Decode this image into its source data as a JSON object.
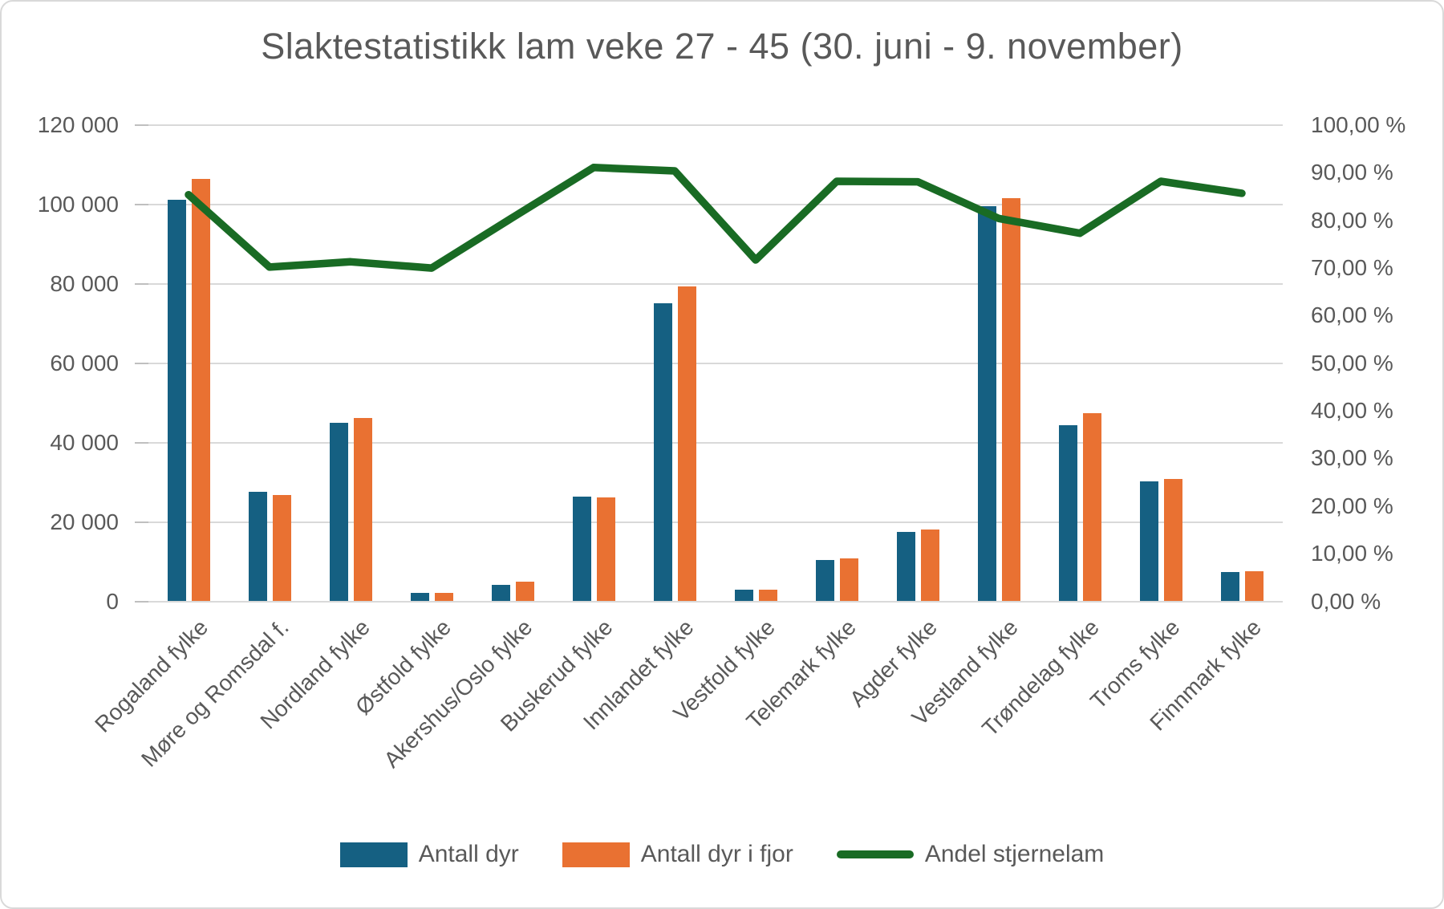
{
  "chart_data": {
    "type": "combo",
    "title": "Slaktestatistikk lam veke 27 - 45 (30. juni - 9. november)",
    "categories": [
      "Rogaland fylke",
      "Møre og Romsdal f.",
      "Nordland fylke",
      "Østfold fylke",
      "Akershus/Oslo fylke",
      "Buskerud fylke",
      "Innlandet fylke",
      "Vestfold fylke",
      "Telemark fylke",
      "Agder fylke",
      "Vestland fylke",
      "Trøndelag fylke",
      "Troms fylke",
      "Finnmark fylke"
    ],
    "series": [
      {
        "name": "Antall dyr",
        "type": "bar",
        "axis": "left",
        "color": "#156082",
        "values": [
          101200,
          27500,
          44900,
          2200,
          4200,
          26300,
          75100,
          2900,
          10400,
          17500,
          99500,
          44300,
          30200,
          7400
        ]
      },
      {
        "name": "Antall dyr i fjor",
        "type": "bar",
        "axis": "left",
        "color": "#E97132",
        "values": [
          106400,
          26800,
          46200,
          2100,
          4900,
          26100,
          79300,
          3000,
          10800,
          18000,
          101500,
          47400,
          30900,
          7600
        ]
      },
      {
        "name": "Andel stjernelam",
        "type": "line",
        "axis": "right",
        "color": "#196B24",
        "values": [
          85.4,
          70.2,
          71.3,
          70.0,
          80.6,
          91.1,
          90.4,
          71.7,
          88.2,
          88.1,
          80.4,
          77.3,
          88.2,
          85.7
        ]
      }
    ],
    "left_axis": {
      "min": 0,
      "max": 120000,
      "step": 20000,
      "labels": [
        "120 000",
        "100 000",
        "80 000",
        "60 000",
        "40 000",
        "20 000",
        "0"
      ]
    },
    "right_axis": {
      "min": 0,
      "max": 100,
      "step": 10,
      "labels": [
        "100,00 %",
        "90,00 %",
        "80,00 %",
        "70,00 %",
        "60,00 %",
        "50,00 %",
        "40,00 %",
        "30,00 %",
        "20,00 %",
        "10,00 %",
        "0,00 %"
      ]
    },
    "gridlines": "horizontal",
    "legend_position": "bottom",
    "colors": {
      "grid": "#D9D9D9",
      "text": "#595959",
      "background": "#FFFFFF"
    }
  }
}
